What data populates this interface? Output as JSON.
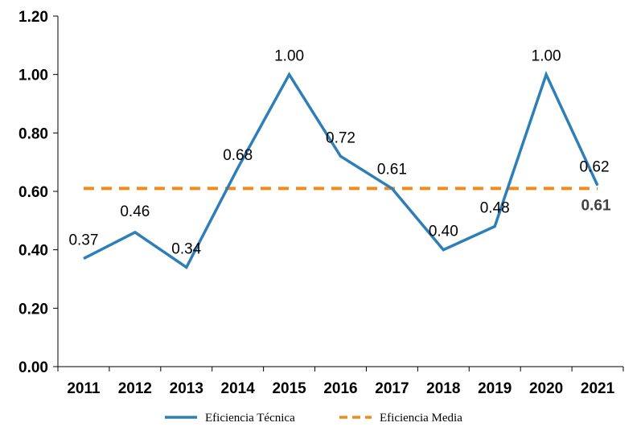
{
  "chart_data": {
    "type": "line",
    "categories": [
      "2011",
      "2012",
      "2013",
      "2014",
      "2015",
      "2016",
      "2017",
      "2018",
      "2019",
      "2020",
      "2021"
    ],
    "series": [
      {
        "name": "Eficiencia Técnica",
        "values": [
          0.37,
          0.46,
          0.34,
          0.68,
          1.0,
          0.72,
          0.61,
          0.4,
          0.48,
          1.0,
          0.62
        ],
        "labels": [
          "0.37",
          "0.46",
          "0.34",
          "0.68",
          "1.00",
          "0.72",
          "0.61",
          "0.40",
          "0.48",
          "1.00",
          "0.62"
        ],
        "color": "#2E7EB8",
        "style": "solid"
      },
      {
        "name": "Eficiencia Media",
        "values": [
          0.61,
          0.61,
          0.61,
          0.61,
          0.61,
          0.61,
          0.61,
          0.61,
          0.61,
          0.61,
          0.61
        ],
        "end_label": "0.61",
        "color": "#F08A1C",
        "style": "dashed"
      }
    ],
    "yticks": [
      "0.00",
      "0.20",
      "0.40",
      "0.60",
      "0.80",
      "1.00",
      "1.20"
    ],
    "ylim": [
      0,
      1.2
    ],
    "grid": false,
    "legend_position": "bottom"
  }
}
